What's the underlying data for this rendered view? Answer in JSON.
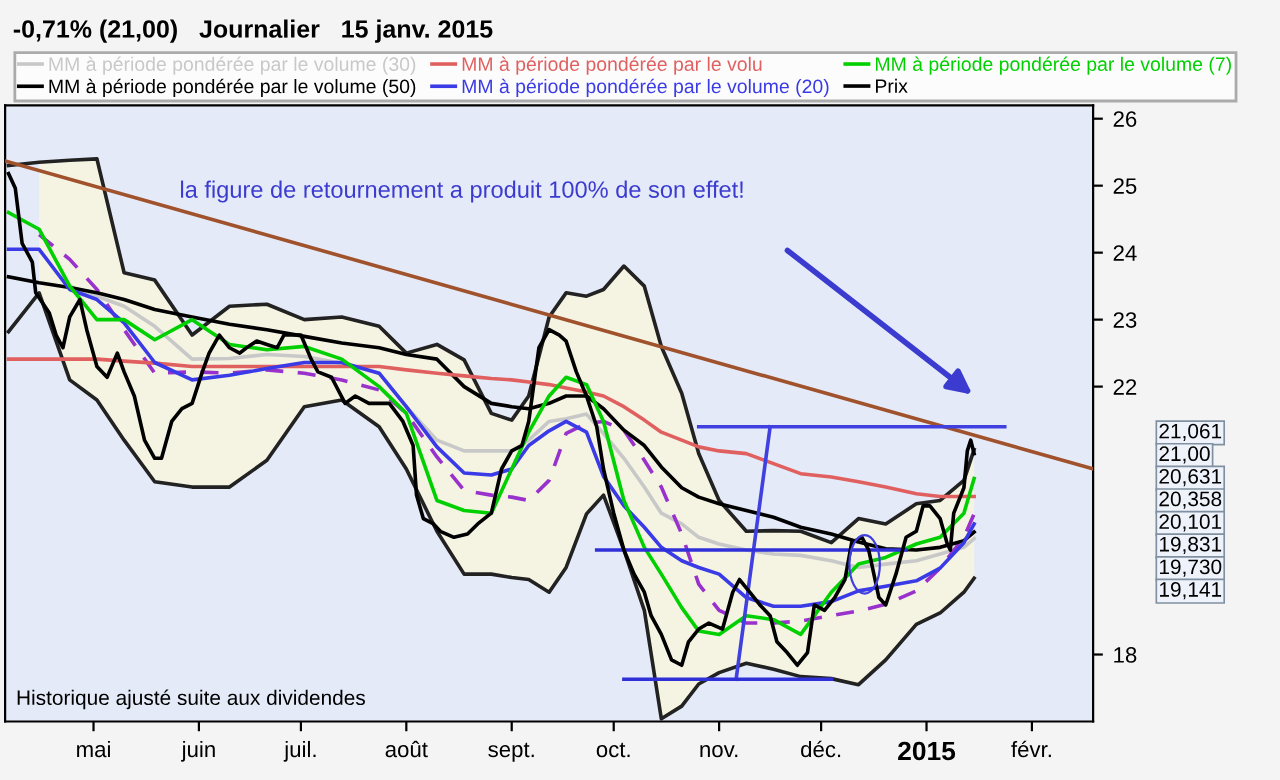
{
  "chart_data": {
    "type": "line",
    "title": "-0,71% (21,00)   Journalier   15 janv. 2015",
    "xlim": [
      "2014-04-05",
      "2015-02-19"
    ],
    "ylim": [
      17.0,
      26.2
    ],
    "xticks": [
      {
        "value": "2014-05-01",
        "label": "mai"
      },
      {
        "value": "2014-06-01",
        "label": "juin"
      },
      {
        "value": "2014-07-01",
        "label": "juil."
      },
      {
        "value": "2014-08-01",
        "label": "août"
      },
      {
        "value": "2014-09-01",
        "label": "sept."
      },
      {
        "value": "2014-10-01",
        "label": "oct."
      },
      {
        "value": "2014-11-01",
        "label": "nov."
      },
      {
        "value": "2014-12-01",
        "label": "déc."
      },
      {
        "value": "2015-01-01",
        "label": "2015"
      },
      {
        "value": "2015-02-01",
        "label": "févr."
      }
    ],
    "yticks": [
      18,
      22,
      23,
      24,
      25,
      26
    ],
    "grid": false,
    "legend": "top",
    "series": [
      {
        "name": "MM à période pondérée par le volume (30)",
        "color": "#c8c8c8",
        "x": [
          "2014-04-24",
          "2014-05-02",
          "2014-05-10",
          "2014-05-19",
          "2014-05-30",
          "2014-06-10",
          "2014-06-21",
          "2014-07-02",
          "2014-07-13",
          "2014-07-24",
          "2014-08-01",
          "2014-08-10",
          "2014-08-18",
          "2014-08-26",
          "2014-09-01",
          "2014-09-06",
          "2014-09-12",
          "2014-09-17",
          "2014-09-23",
          "2014-09-28",
          "2014-10-04",
          "2014-10-10",
          "2014-10-15",
          "2014-10-21",
          "2014-10-26",
          "2014-11-01",
          "2014-11-09",
          "2014-11-17",
          "2014-11-25",
          "2014-12-04",
          "2014-12-12",
          "2014-12-20",
          "2014-12-29",
          "2015-01-05",
          "2015-01-12",
          "2015-01-15"
        ],
        "values": [
          23.5,
          23.35,
          23.2,
          22.9,
          22.41,
          22.42,
          22.48,
          22.45,
          22.35,
          22.2,
          21.7,
          21.2,
          21.04,
          21.04,
          21.04,
          21.2,
          21.48,
          21.52,
          21.59,
          21.3,
          20.93,
          20.5,
          20.11,
          19.95,
          19.75,
          19.65,
          19.56,
          19.5,
          19.48,
          19.4,
          19.3,
          19.35,
          19.4,
          19.5,
          19.6,
          19.73
        ]
      },
      {
        "color": "#9932cc",
        "line_style": "dashed",
        "x": [
          "2014-04-15",
          "2014-04-24",
          "2014-05-02",
          "2014-05-10",
          "2014-05-19",
          "2014-05-30",
          "2014-06-10",
          "2014-06-21",
          "2014-07-02",
          "2014-07-13",
          "2014-07-24",
          "2014-08-01",
          "2014-08-10",
          "2014-08-18",
          "2014-08-26",
          "2014-09-01",
          "2014-09-06",
          "2014-09-12",
          "2014-09-17",
          "2014-09-23",
          "2014-09-28",
          "2014-10-04",
          "2014-10-10",
          "2014-10-15",
          "2014-10-21",
          "2014-10-26",
          "2014-11-01",
          "2014-11-09",
          "2014-11-17",
          "2014-11-25",
          "2014-12-04",
          "2014-12-12",
          "2014-12-20",
          "2014-12-29",
          "2015-01-05",
          "2015-01-12",
          "2015-01-15"
        ],
        "values": [
          24.27,
          23.9,
          23.45,
          22.85,
          22.2,
          22.22,
          22.2,
          22.25,
          22.2,
          22.1,
          21.95,
          21.6,
          20.95,
          20.45,
          20.38,
          20.35,
          20.3,
          20.6,
          21.3,
          21.45,
          21.48,
          21.35,
          20.9,
          20.5,
          19.8,
          19.05,
          18.66,
          18.47,
          18.47,
          18.5,
          18.58,
          18.65,
          18.75,
          18.95,
          19.29,
          19.75,
          20.1
        ],
        "upper": [
          25.35,
          25.38,
          25.4,
          23.7,
          23.59,
          22.77,
          23.2,
          23.23,
          23.0,
          23.04,
          22.9,
          22.5,
          22.63,
          22.4,
          21.6,
          21.5,
          21.86,
          23.04,
          23.4,
          23.35,
          23.45,
          23.8,
          23.5,
          22.6,
          21.9,
          21.0,
          20.3,
          19.84,
          19.85,
          19.84,
          19.67,
          20.03,
          19.95,
          20.25,
          20.3,
          20.6,
          21.06
        ],
        "lower": [
          23.4,
          22.1,
          21.8,
          21.2,
          20.58,
          20.5,
          20.5,
          20.9,
          21.7,
          21.8,
          21.4,
          20.77,
          19.84,
          19.2,
          19.2,
          19.15,
          19.12,
          18.93,
          19.3,
          20.1,
          20.38,
          19.56,
          18.66,
          17.04,
          17.23,
          17.56,
          17.73,
          17.87,
          17.78,
          17.67,
          17.64,
          17.55,
          17.92,
          18.45,
          18.62,
          18.93,
          19.14
        ]
      },
      {
        "color": "#222222",
        "x": [
          "2014-04-06",
          "2014-04-15",
          "2014-04-24",
          "2014-05-02",
          "2014-05-10",
          "2014-05-19",
          "2014-05-30",
          "2014-06-10",
          "2014-06-21",
          "2014-07-02",
          "2014-07-13",
          "2014-07-24",
          "2014-08-01",
          "2014-08-10",
          "2014-08-18",
          "2014-08-26",
          "2014-09-01",
          "2014-09-06",
          "2014-09-12",
          "2014-09-17",
          "2014-09-23",
          "2014-09-28",
          "2014-10-04",
          "2014-10-10",
          "2014-10-15",
          "2014-10-21",
          "2014-10-26",
          "2014-11-01",
          "2014-11-09",
          "2014-11-17",
          "2014-11-25",
          "2014-12-04",
          "2014-12-12",
          "2014-12-20",
          "2014-12-29",
          "2015-01-05",
          "2015-01-12",
          "2015-01-15"
        ],
        "values": [
          25.3,
          25.35,
          25.38,
          25.4,
          23.7,
          23.59,
          22.77,
          23.2,
          23.23,
          23.0,
          23.04,
          22.9,
          22.5,
          22.63,
          22.4,
          21.6,
          21.5,
          21.86,
          23.04,
          23.4,
          23.35,
          23.45,
          23.8,
          23.5,
          22.6,
          21.9,
          21.0,
          20.3,
          19.84,
          19.85,
          19.84,
          19.67,
          20.03,
          19.95,
          20.25,
          20.3,
          20.6,
          21.06
        ]
      },
      {
        "color": "#222222",
        "x": [
          "2014-04-06",
          "2014-04-15",
          "2014-04-24",
          "2014-05-02",
          "2014-05-10",
          "2014-05-19",
          "2014-05-30",
          "2014-06-10",
          "2014-06-21",
          "2014-07-02",
          "2014-07-13",
          "2014-07-24",
          "2014-08-01",
          "2014-08-10",
          "2014-08-18",
          "2014-08-26",
          "2014-09-01",
          "2014-09-06",
          "2014-09-12",
          "2014-09-17",
          "2014-09-23",
          "2014-09-28",
          "2014-10-04",
          "2014-10-10",
          "2014-10-15",
          "2014-10-21",
          "2014-10-26",
          "2014-11-01",
          "2014-11-09",
          "2014-11-17",
          "2014-11-25",
          "2014-12-04",
          "2014-12-12",
          "2014-12-20",
          "2014-12-29",
          "2015-01-05",
          "2015-01-12",
          "2015-01-15"
        ],
        "values": [
          22.82,
          23.4,
          22.1,
          21.8,
          21.2,
          20.58,
          20.5,
          20.5,
          20.9,
          21.7,
          21.8,
          21.4,
          20.77,
          19.84,
          19.2,
          19.2,
          19.15,
          19.12,
          18.93,
          19.3,
          20.1,
          20.38,
          19.56,
          18.66,
          17.04,
          17.23,
          17.56,
          17.73,
          17.87,
          17.78,
          17.67,
          17.64,
          17.55,
          17.92,
          18.45,
          18.62,
          18.93,
          19.14
        ]
      },
      {
        "name": "MM à période pondérée par le volume (50)",
        "color": "#000000",
        "x": [
          "2014-04-06",
          "2014-04-15",
          "2014-04-24",
          "2014-05-02",
          "2014-05-10",
          "2014-05-19",
          "2014-05-30",
          "2014-06-10",
          "2014-06-21",
          "2014-07-02",
          "2014-07-13",
          "2014-07-24",
          "2014-08-01",
          "2014-08-10",
          "2014-08-18",
          "2014-08-26",
          "2014-09-01",
          "2014-09-06",
          "2014-09-12",
          "2014-09-17",
          "2014-09-23",
          "2014-09-28",
          "2014-10-04",
          "2014-10-10",
          "2014-10-15",
          "2014-10-21",
          "2014-10-26",
          "2014-11-01",
          "2014-11-09",
          "2014-11-17",
          "2014-11-25",
          "2014-12-04",
          "2014-12-12",
          "2014-12-20",
          "2014-12-29",
          "2015-01-05",
          "2015-01-12",
          "2015-01-15"
        ],
        "values": [
          23.64,
          23.55,
          23.48,
          23.4,
          23.3,
          23.15,
          23.04,
          22.93,
          22.85,
          22.75,
          22.65,
          22.58,
          22.48,
          22.41,
          22.0,
          21.75,
          21.7,
          21.67,
          21.75,
          21.86,
          21.86,
          21.67,
          21.35,
          21.12,
          20.8,
          20.49,
          20.35,
          20.25,
          20.15,
          20.05,
          19.9,
          19.8,
          19.68,
          19.58,
          19.56,
          19.6,
          19.7,
          19.83
        ]
      },
      {
        "name": "MM à période pondérée par le volu",
        "color": "#e06060",
        "x": [
          "2014-04-06",
          "2014-04-15",
          "2014-04-24",
          "2014-05-02",
          "2014-05-10",
          "2014-05-19",
          "2014-05-30",
          "2014-06-10",
          "2014-06-21",
          "2014-07-02",
          "2014-07-13",
          "2014-07-24",
          "2014-08-01",
          "2014-08-10",
          "2014-08-18",
          "2014-08-26",
          "2014-09-01",
          "2014-09-06",
          "2014-09-12",
          "2014-09-17",
          "2014-09-23",
          "2014-09-28",
          "2014-10-04",
          "2014-10-10",
          "2014-10-15",
          "2014-10-21",
          "2014-10-26",
          "2014-11-01",
          "2014-11-09",
          "2014-11-17",
          "2014-11-25",
          "2014-12-04",
          "2014-12-12",
          "2014-12-20",
          "2014-12-29",
          "2015-01-05",
          "2015-01-12",
          "2015-01-15"
        ],
        "values": [
          22.41,
          22.41,
          22.41,
          22.41,
          22.38,
          22.35,
          22.3,
          22.3,
          22.3,
          22.3,
          22.3,
          22.3,
          22.25,
          22.2,
          22.16,
          22.12,
          22.1,
          22.07,
          22.03,
          21.98,
          21.92,
          21.86,
          21.7,
          21.5,
          21.32,
          21.2,
          21.1,
          21.04,
          21.0,
          20.85,
          20.7,
          20.65,
          20.58,
          20.5,
          20.4,
          20.36,
          20.36,
          20.36
        ]
      },
      {
        "name": "MM à période pondérée par le volume (20)",
        "color": "#3a3ae6",
        "x": [
          "2014-04-06",
          "2014-04-15",
          "2014-04-24",
          "2014-05-02",
          "2014-05-10",
          "2014-05-19",
          "2014-05-30",
          "2014-06-10",
          "2014-06-21",
          "2014-07-02",
          "2014-07-13",
          "2014-07-24",
          "2014-08-01",
          "2014-08-10",
          "2014-08-18",
          "2014-08-26",
          "2014-09-01",
          "2014-09-06",
          "2014-09-12",
          "2014-09-17",
          "2014-09-23",
          "2014-09-28",
          "2014-10-04",
          "2014-10-10",
          "2014-10-15",
          "2014-10-21",
          "2014-10-26",
          "2014-11-01",
          "2014-11-09",
          "2014-11-17",
          "2014-11-25",
          "2014-12-04",
          "2014-12-12",
          "2014-12-20",
          "2014-12-29",
          "2015-01-05",
          "2015-01-12",
          "2015-01-15"
        ],
        "values": [
          24.05,
          24.05,
          23.45,
          23.3,
          22.95,
          22.36,
          22.1,
          22.17,
          22.27,
          22.36,
          22.36,
          22.2,
          21.7,
          21.1,
          20.71,
          20.68,
          20.77,
          21.12,
          21.34,
          21.48,
          21.32,
          20.66,
          20.22,
          19.9,
          19.6,
          19.4,
          19.3,
          19.2,
          18.85,
          18.72,
          18.72,
          18.79,
          18.95,
          19.02,
          19.1,
          19.29,
          19.67,
          19.95
        ]
      },
      {
        "name": "MM à période pondérée par le volume (7)",
        "color": "#00d000",
        "x": [
          "2014-04-06",
          "2014-04-15",
          "2014-04-24",
          "2014-05-02",
          "2014-05-10",
          "2014-05-19",
          "2014-05-30",
          "2014-06-10",
          "2014-06-21",
          "2014-07-02",
          "2014-07-13",
          "2014-07-24",
          "2014-08-01",
          "2014-08-10",
          "2014-08-18",
          "2014-08-26",
          "2014-09-01",
          "2014-09-06",
          "2014-09-12",
          "2014-09-17",
          "2014-09-23",
          "2014-09-28",
          "2014-10-04",
          "2014-10-10",
          "2014-10-15",
          "2014-10-21",
          "2014-10-26",
          "2014-11-01",
          "2014-11-09",
          "2014-11-17",
          "2014-11-25",
          "2014-12-04",
          "2014-12-12",
          "2014-12-20",
          "2014-12-29",
          "2015-01-05",
          "2015-01-12",
          "2015-01-15"
        ],
        "values": [
          24.6,
          24.35,
          23.5,
          23.0,
          23.0,
          22.7,
          23.0,
          22.63,
          22.55,
          22.6,
          22.41,
          22.0,
          21.6,
          20.3,
          20.15,
          20.11,
          20.77,
          21.32,
          21.86,
          22.14,
          22.03,
          21.48,
          20.3,
          19.6,
          19.2,
          18.7,
          18.35,
          18.3,
          18.58,
          18.52,
          18.3,
          18.93,
          19.35,
          19.45,
          19.65,
          19.75,
          20.11,
          20.63
        ]
      },
      {
        "color": "#a0522d",
        "x": [
          "2014-04-05",
          "2015-02-19"
        ],
        "values": [
          25.37,
          20.77
        ]
      },
      {
        "color": "#4040e0",
        "x": [
          "2014-10-26",
          "2015-01-24"
        ],
        "values": [
          21.4,
          21.4
        ]
      },
      {
        "color": "#4040e0",
        "x": [
          "2014-11-16",
          "2014-11-06"
        ],
        "values": [
          21.4,
          17.63
        ]
      },
      {
        "color": "#3030d8",
        "x": [
          "2014-09-26",
          "2014-12-26"
        ],
        "values": [
          19.56,
          19.56
        ]
      },
      {
        "color": "#3030d8",
        "x": [
          "2014-10-04",
          "2014-12-04"
        ],
        "values": [
          17.63,
          17.63
        ]
      },
      {
        "name": "Prix",
        "color": "#000000",
        "x": [
          "2014-04-06",
          "2014-04-08",
          "2014-04-10",
          "2014-04-13",
          "2014-04-14",
          "2014-04-18",
          "2014-04-20",
          "2014-04-22",
          "2014-04-24",
          "2014-04-27",
          "2014-04-29",
          "2014-05-02",
          "2014-05-05",
          "2014-05-08",
          "2014-05-10",
          "2014-05-13",
          "2014-05-16",
          "2014-05-19",
          "2014-05-21",
          "2014-05-24",
          "2014-05-27",
          "2014-05-30",
          "2014-06-02",
          "2014-06-04",
          "2014-06-07",
          "2014-06-10",
          "2014-06-13",
          "2014-06-15",
          "2014-06-18",
          "2014-06-21",
          "2014-06-24",
          "2014-06-26",
          "2014-07-01",
          "2014-07-04",
          "2014-07-06",
          "2014-07-10",
          "2014-07-14",
          "2014-07-17",
          "2014-07-21",
          "2014-07-27",
          "2014-07-31",
          "2014-08-03",
          "2014-08-04",
          "2014-08-06",
          "2014-08-09",
          "2014-08-11",
          "2014-08-15",
          "2014-08-19",
          "2014-08-22",
          "2014-08-26",
          "2014-08-29",
          "2014-09-01",
          "2014-09-04",
          "2014-09-06",
          "2014-09-09",
          "2014-09-12",
          "2014-09-15",
          "2014-09-17",
          "2014-09-20",
          "2014-09-23",
          "2014-09-26",
          "2014-09-28",
          "2014-10-01",
          "2014-10-04",
          "2014-10-07",
          "2014-10-10",
          "2014-10-12",
          "2014-10-15",
          "2014-10-18",
          "2014-10-21",
          "2014-10-23",
          "2014-10-26",
          "2014-10-29",
          "2014-11-02",
          "2014-11-05",
          "2014-11-07",
          "2014-11-10",
          "2014-11-13",
          "2014-11-16",
          "2014-11-18",
          "2014-11-21",
          "2014-11-24",
          "2014-11-27",
          "2014-11-29",
          "2014-12-02",
          "2014-12-05",
          "2014-12-08",
          "2014-12-10",
          "2014-12-13",
          "2014-12-15",
          "2014-12-18",
          "2014-12-20",
          "2014-12-23",
          "2014-12-26",
          "2014-12-29",
          "2014-12-31",
          "2015-01-02",
          "2015-01-05",
          "2015-01-07",
          "2015-01-08",
          "2015-01-09",
          "2015-01-12",
          "2015-01-13",
          "2015-01-14",
          "2015-01-15"
        ],
        "values": [
          25.18,
          24.96,
          24.14,
          23.86,
          23.4,
          23.1,
          22.77,
          22.58,
          23.04,
          23.3,
          22.85,
          22.3,
          22.14,
          22.5,
          22.22,
          21.86,
          21.2,
          20.93,
          20.93,
          21.48,
          21.67,
          21.75,
          22.22,
          22.5,
          22.77,
          22.58,
          22.5,
          22.58,
          22.68,
          22.63,
          22.58,
          22.77,
          22.77,
          22.41,
          22.22,
          22.14,
          21.75,
          21.86,
          21.75,
          21.75,
          21.48,
          21.12,
          20.38,
          20.03,
          19.95,
          19.84,
          19.75,
          19.8,
          19.95,
          20.11,
          20.77,
          21.04,
          21.12,
          21.48,
          22.58,
          22.85,
          22.77,
          22.68,
          22.22,
          21.86,
          21.4,
          20.77,
          20.11,
          19.56,
          19.2,
          18.93,
          18.58,
          18.3,
          17.92,
          17.84,
          18.19,
          18.38,
          18.47,
          18.38,
          18.93,
          19.12,
          18.93,
          18.74,
          18.58,
          18.19,
          18.03,
          17.84,
          18.03,
          18.74,
          18.66,
          18.85,
          19.12,
          19.67,
          19.75,
          19.56,
          18.85,
          18.74,
          19.2,
          19.75,
          19.84,
          20.22,
          20.22,
          20.03,
          19.67,
          19.56,
          20.11,
          20.49,
          21.04,
          21.2,
          21.0
        ]
      }
    ],
    "annotations": [
      "la figure de retournement a produit 100% de son effet!",
      "Historique ajusté suite aux dividendes",
      "21,061",
      "21,00",
      "20,631",
      "20,358",
      "20,101",
      "19,831",
      "19,730",
      "19,141"
    ]
  }
}
